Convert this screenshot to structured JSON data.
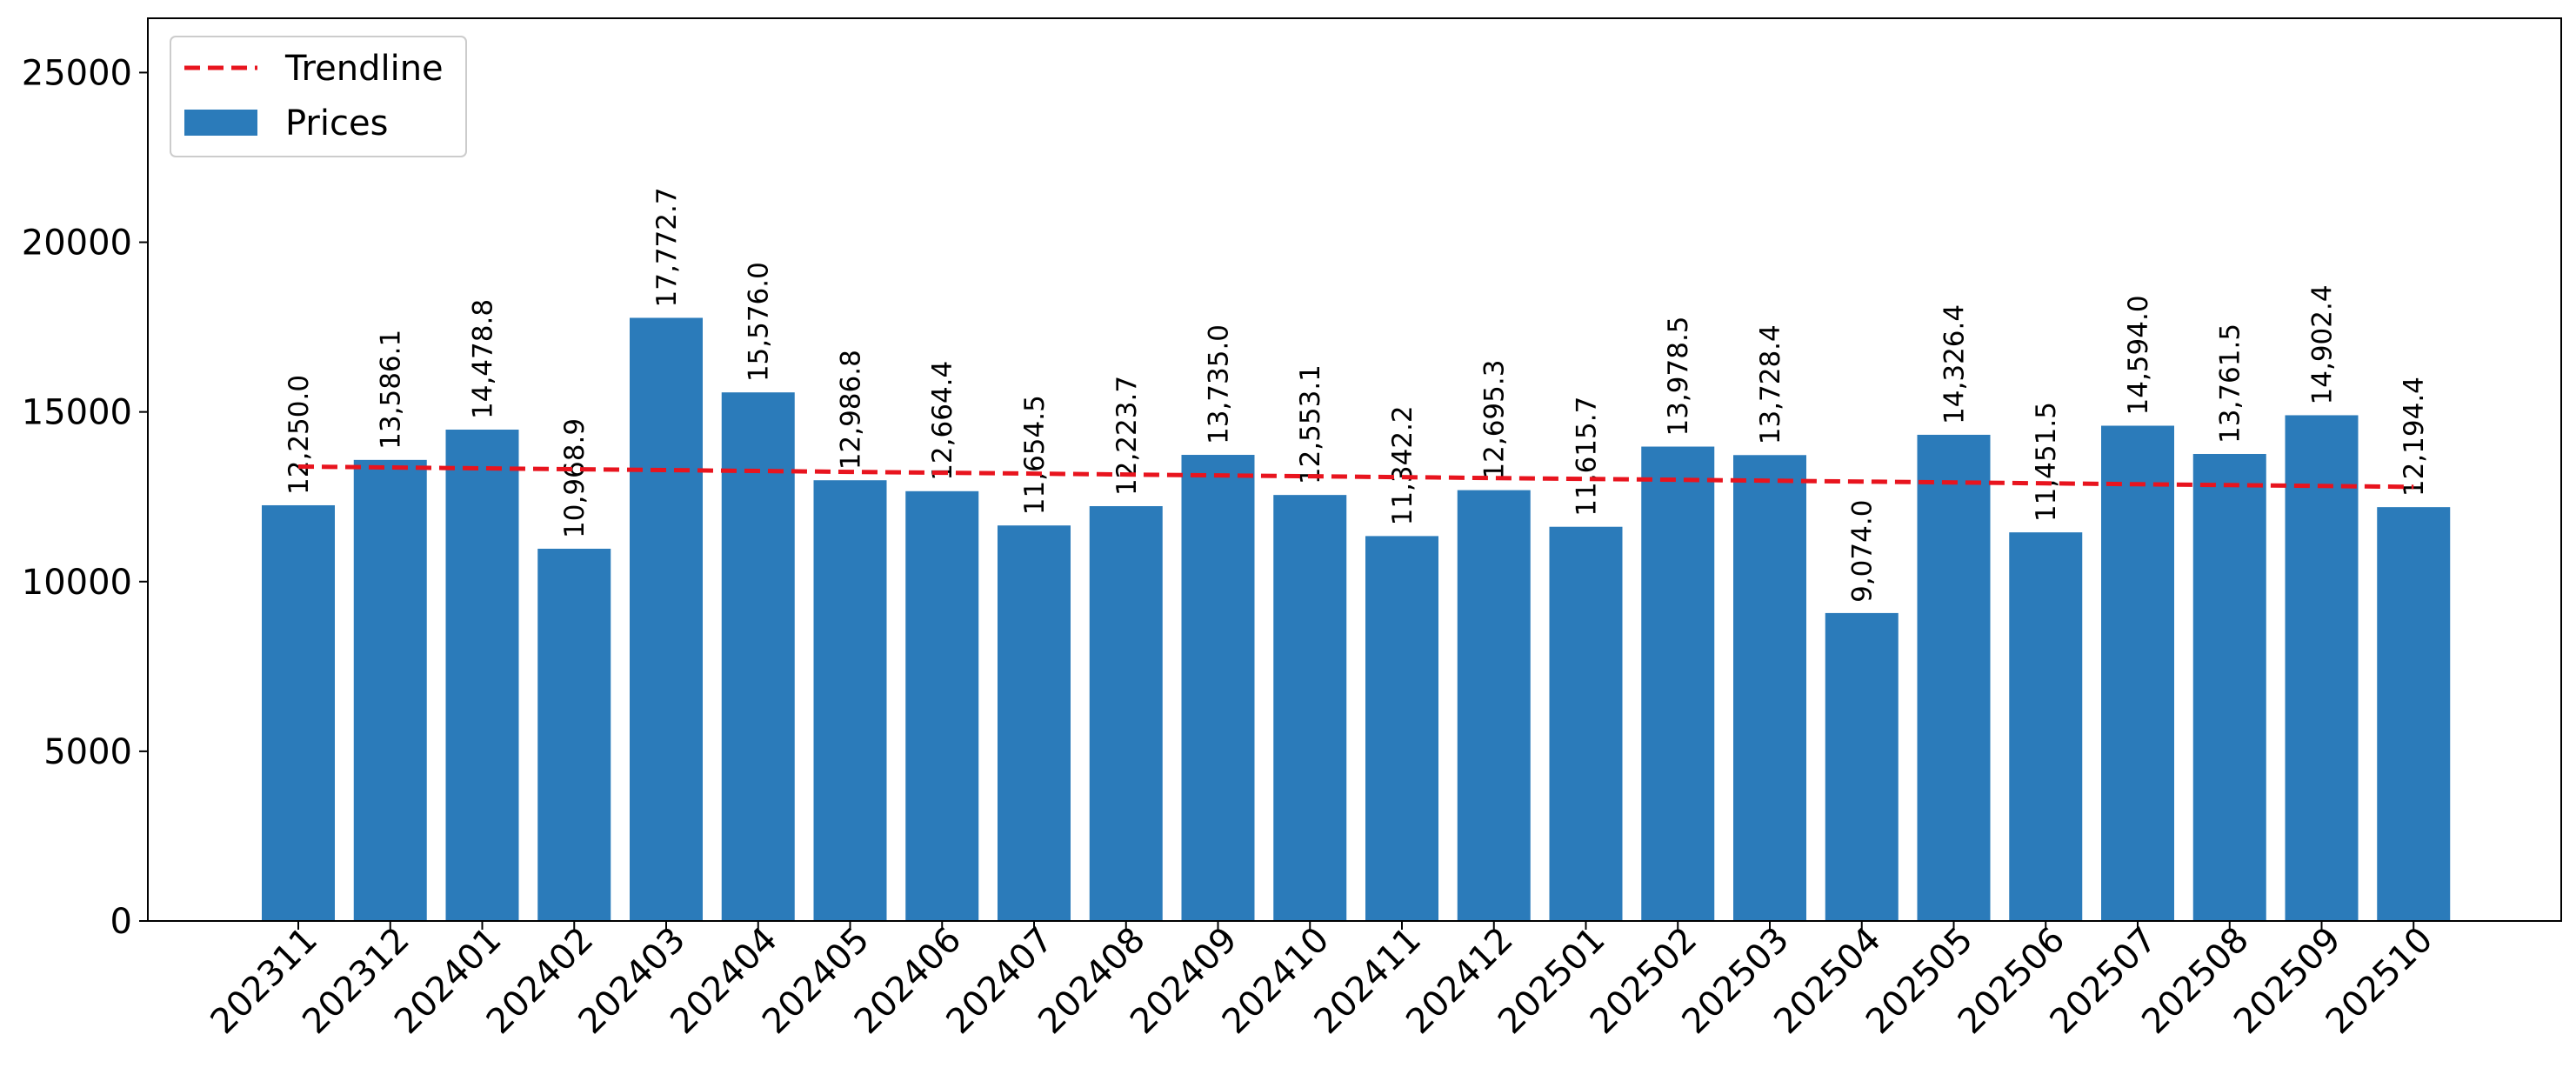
{
  "chart_data": {
    "type": "bar",
    "categories": [
      "202311",
      "202312",
      "202401",
      "202402",
      "202403",
      "202404",
      "202405",
      "202406",
      "202407",
      "202408",
      "202409",
      "202410",
      "202411",
      "202412",
      "202501",
      "202502",
      "202503",
      "202504",
      "202505",
      "202506",
      "202507",
      "202508",
      "202509",
      "202510"
    ],
    "series": [
      {
        "name": "Prices",
        "type": "bar",
        "color": "#2b7bba",
        "values": [
          12250.0,
          13586.1,
          14478.8,
          10968.9,
          17772.7,
          15576.0,
          12986.8,
          12664.4,
          11654.5,
          12223.7,
          13735.0,
          12553.1,
          11342.2,
          12695.3,
          11615.7,
          13978.5,
          13728.4,
          9074.0,
          14326.4,
          11451.5,
          14594.0,
          13761.5,
          14902.4,
          12194.4
        ]
      },
      {
        "name": "Trendline",
        "type": "line",
        "style": "dashed",
        "color": "#e8141e",
        "values": [
          13390,
          13364,
          13338,
          13312,
          13286,
          13260,
          13234,
          13208,
          13182,
          13156,
          13130,
          13104,
          13078,
          13052,
          13026,
          13000,
          12974,
          12948,
          12922,
          12896,
          12870,
          12844,
          12818,
          12792
        ]
      }
    ],
    "data_labels": [
      "12,250.0",
      "13,586.1",
      "14,478.8",
      "10,968.9",
      "17,772.7",
      "15,576.0",
      "12,986.8",
      "12,664.4",
      "11,654.5",
      "12,223.7",
      "13,735.0",
      "12,553.1",
      "11,342.2",
      "12,695.3",
      "11,615.7",
      "13,978.5",
      "13,728.4",
      "9,074.0",
      "14,326.4",
      "11,451.5",
      "14,594.0",
      "13,761.5",
      "14,902.4",
      "12,194.4"
    ],
    "yticks": [
      "0",
      "5000",
      "10000",
      "15000",
      "20000",
      "25000"
    ],
    "ylim": [
      0,
      26600
    ],
    "title": "",
    "xlabel": "",
    "ylabel": "",
    "legend": {
      "placement": "top-left",
      "entries": [
        "Trendline",
        "Prices"
      ]
    },
    "grid": false
  }
}
